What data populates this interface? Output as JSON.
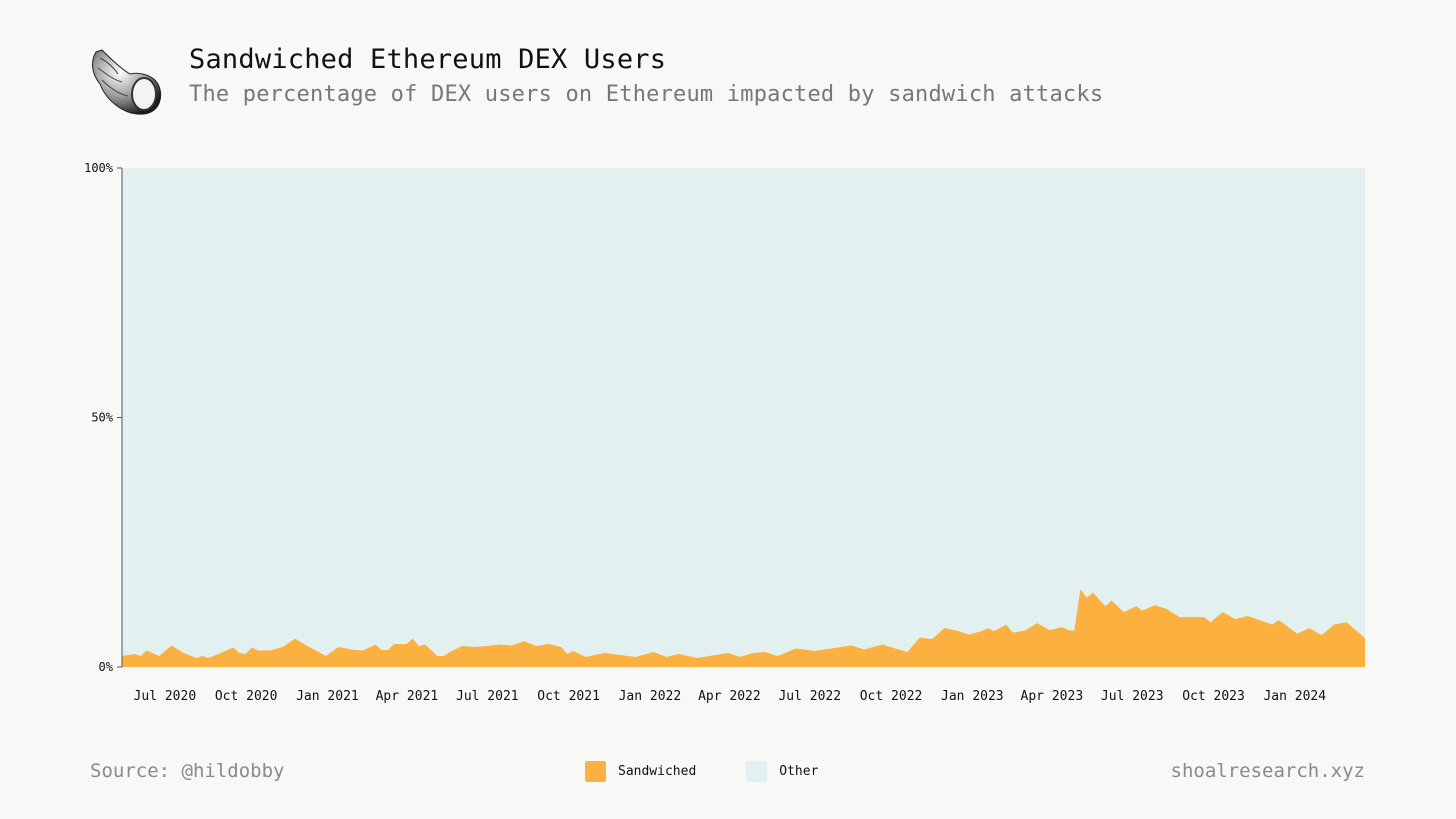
{
  "header": {
    "title": "Sandwiched Ethereum DEX Users",
    "subtitle": "The percentage of DEX users on Ethereum impacted by sandwich attacks"
  },
  "logo": {
    "icon": "seashell-icon"
  },
  "footer": {
    "source": "Source: @hildobby",
    "site": "shoalresearch.xyz"
  },
  "colors": {
    "sandwiched": "#fbb040",
    "other": "#e2f0ef",
    "background": "#f8f8f6"
  },
  "legend": [
    {
      "label": "Sandwiched",
      "color": "#fbb040"
    },
    {
      "label": "Other",
      "color": "#e2f0ef"
    }
  ],
  "chart_data": {
    "type": "area",
    "stacked": "percent",
    "x_range": [
      "2020-05-18",
      "2024-03-25"
    ],
    "y_ticks": [
      {
        "value": 0,
        "label": "0%"
      },
      {
        "value": 50,
        "label": "50%"
      },
      {
        "value": 100,
        "label": "100%"
      }
    ],
    "ylim": [
      0,
      100
    ],
    "x_ticks": [
      {
        "date": "2020-07-01",
        "label": "Jul 2020"
      },
      {
        "date": "2020-10-01",
        "label": "Oct 2020"
      },
      {
        "date": "2021-01-01",
        "label": "Jan 2021"
      },
      {
        "date": "2021-04-01",
        "label": "Apr 2021"
      },
      {
        "date": "2021-07-01",
        "label": "Jul 2021"
      },
      {
        "date": "2021-10-01",
        "label": "Oct 2021"
      },
      {
        "date": "2022-01-01",
        "label": "Jan 2022"
      },
      {
        "date": "2022-04-01",
        "label": "Apr 2022"
      },
      {
        "date": "2022-07-01",
        "label": "Jul 2022"
      },
      {
        "date": "2022-10-01",
        "label": "Oct 2022"
      },
      {
        "date": "2023-01-01",
        "label": "Jan 2023"
      },
      {
        "date": "2023-04-01",
        "label": "Apr 2023"
      },
      {
        "date": "2023-07-01",
        "label": "Jul 2023"
      },
      {
        "date": "2023-10-01",
        "label": "Oct 2023"
      },
      {
        "date": "2024-01-01",
        "label": "Jan 2024"
      }
    ],
    "series": [
      {
        "name": "Sandwiched",
        "points": [
          [
            "2020-05-18",
            2.2
          ],
          [
            "2020-06-01",
            2.6
          ],
          [
            "2020-06-08",
            2.2
          ],
          [
            "2020-06-15",
            3.3
          ],
          [
            "2020-06-29",
            2.2
          ],
          [
            "2020-07-13",
            4.3
          ],
          [
            "2020-07-27",
            2.8
          ],
          [
            "2020-08-10",
            1.8
          ],
          [
            "2020-08-17",
            2.2
          ],
          [
            "2020-08-24",
            1.8
          ],
          [
            "2020-09-07",
            2.8
          ],
          [
            "2020-09-21",
            3.9
          ],
          [
            "2020-09-28",
            2.8
          ],
          [
            "2020-10-05",
            2.6
          ],
          [
            "2020-10-12",
            3.9
          ],
          [
            "2020-10-19",
            3.3
          ],
          [
            "2020-11-02",
            3.3
          ],
          [
            "2020-11-16",
            4.0
          ],
          [
            "2020-11-30",
            5.7
          ],
          [
            "2020-12-14",
            4.2
          ],
          [
            "2021-01-04",
            2.2
          ],
          [
            "2021-01-18",
            4.0
          ],
          [
            "2021-02-01",
            3.5
          ],
          [
            "2021-02-15",
            3.3
          ],
          [
            "2021-03-01",
            4.5
          ],
          [
            "2021-03-08",
            3.4
          ],
          [
            "2021-03-15",
            3.4
          ],
          [
            "2021-03-22",
            4.6
          ],
          [
            "2021-04-05",
            4.6
          ],
          [
            "2021-04-12",
            5.7
          ],
          [
            "2021-04-19",
            4.2
          ],
          [
            "2021-04-26",
            4.5
          ],
          [
            "2021-05-10",
            2.2
          ],
          [
            "2021-05-17",
            2.2
          ],
          [
            "2021-05-24",
            3.0
          ],
          [
            "2021-06-07",
            4.2
          ],
          [
            "2021-06-21",
            4.0
          ],
          [
            "2021-07-05",
            4.2
          ],
          [
            "2021-07-19",
            4.5
          ],
          [
            "2021-08-02",
            4.3
          ],
          [
            "2021-08-16",
            5.2
          ],
          [
            "2021-08-30",
            4.2
          ],
          [
            "2021-09-13",
            4.6
          ],
          [
            "2021-09-27",
            4.0
          ],
          [
            "2021-10-04",
            2.6
          ],
          [
            "2021-10-11",
            3.2
          ],
          [
            "2021-10-25",
            2.0
          ],
          [
            "2021-11-15",
            2.8
          ],
          [
            "2021-12-20",
            2.0
          ],
          [
            "2022-01-10",
            3.0
          ],
          [
            "2022-01-24",
            2.0
          ],
          [
            "2022-02-07",
            2.6
          ],
          [
            "2022-02-28",
            1.8
          ],
          [
            "2022-04-04",
            2.8
          ],
          [
            "2022-04-18",
            2.0
          ],
          [
            "2022-05-02",
            2.8
          ],
          [
            "2022-05-16",
            3.0
          ],
          [
            "2022-05-30",
            2.2
          ],
          [
            "2022-06-20",
            3.7
          ],
          [
            "2022-07-11",
            3.2
          ],
          [
            "2022-08-22",
            4.3
          ],
          [
            "2022-09-05",
            3.5
          ],
          [
            "2022-09-26",
            4.5
          ],
          [
            "2022-10-10",
            3.7
          ],
          [
            "2022-10-24",
            3.0
          ],
          [
            "2022-11-07",
            5.9
          ],
          [
            "2022-11-21",
            5.6
          ],
          [
            "2022-12-05",
            7.8
          ],
          [
            "2022-12-19",
            7.3
          ],
          [
            "2023-01-02",
            6.5
          ],
          [
            "2023-01-16",
            7.2
          ],
          [
            "2023-01-23",
            7.8
          ],
          [
            "2023-01-30",
            7.2
          ],
          [
            "2023-02-13",
            8.5
          ],
          [
            "2023-02-20",
            6.9
          ],
          [
            "2023-03-06",
            7.3
          ],
          [
            "2023-03-20",
            8.8
          ],
          [
            "2023-04-03",
            7.4
          ],
          [
            "2023-04-17",
            8.0
          ],
          [
            "2023-04-24",
            7.4
          ],
          [
            "2023-05-01",
            7.3
          ],
          [
            "2023-05-08",
            15.6
          ],
          [
            "2023-05-15",
            13.9
          ],
          [
            "2023-05-22",
            14.9
          ],
          [
            "2023-06-05",
            12.2
          ],
          [
            "2023-06-12",
            13.3
          ],
          [
            "2023-06-19",
            12.2
          ],
          [
            "2023-06-26",
            11.0
          ],
          [
            "2023-07-10",
            12.2
          ],
          [
            "2023-07-17",
            11.3
          ],
          [
            "2023-07-31",
            12.4
          ],
          [
            "2023-08-14",
            11.6
          ],
          [
            "2023-08-28",
            10.0
          ],
          [
            "2023-09-25",
            10.0
          ],
          [
            "2023-10-02",
            9.0
          ],
          [
            "2023-10-16",
            11.0
          ],
          [
            "2023-10-30",
            9.6
          ],
          [
            "2023-11-13",
            10.2
          ],
          [
            "2023-11-27",
            9.4
          ],
          [
            "2023-12-11",
            8.5
          ],
          [
            "2023-12-18",
            9.4
          ],
          [
            "2023-12-25",
            8.6
          ],
          [
            "2024-01-08",
            6.7
          ],
          [
            "2024-01-22",
            7.8
          ],
          [
            "2024-02-05",
            6.4
          ],
          [
            "2024-02-19",
            8.5
          ],
          [
            "2024-03-04",
            9.0
          ],
          [
            "2024-03-25",
            5.8
          ]
        ]
      },
      {
        "name": "Other",
        "note_fill": "remainder to 100%"
      }
    ]
  }
}
